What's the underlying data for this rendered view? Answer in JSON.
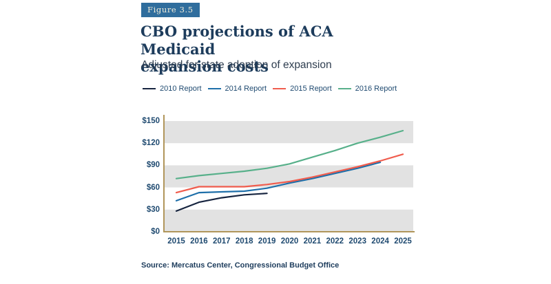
{
  "figure_label": "Figure 3.5",
  "source": "Source: Mercatus Center, Congressional Budget Office",
  "colors": {
    "badge_background": "#2f6d9d",
    "badge_text": "#f2edda",
    "title_navy": "#1d3c5c",
    "subtitle_gray_navy": "#2e3d4f",
    "tick_navy": "#1f4a70",
    "source_navy": "#1d3c5c",
    "axis_gold": "#b0955a",
    "band_gray": "#e2e2e2"
  },
  "chart_data": {
    "type": "line",
    "title": "CBO projections of ACA Medicaid\nexpansion costs",
    "subtitle": "Adjusted for state adoption of expansion",
    "x": [
      2015,
      2016,
      2017,
      2018,
      2019,
      2020,
      2021,
      2022,
      2023,
      2024,
      2025
    ],
    "y_ticks": [
      0,
      30,
      60,
      90,
      120,
      150
    ],
    "y_tick_prefix": "$",
    "ylim": [
      0,
      150
    ],
    "grid": "alternating horizontal gray bands every $30",
    "legend_position": "top",
    "series": [
      {
        "name": "2010 Report",
        "color": "#16243f",
        "values": [
          28,
          40,
          46,
          50,
          52
        ]
      },
      {
        "name": "2014 Report",
        "color": "#1e6fa9",
        "values": [
          42,
          53,
          54,
          55,
          59,
          66,
          72,
          79,
          86,
          94
        ]
      },
      {
        "name": "2015 Report",
        "color": "#f05c4d",
        "values": [
          53,
          61,
          61,
          61,
          64,
          68,
          74,
          81,
          88,
          96,
          105
        ]
      },
      {
        "name": "2016 Report",
        "color": "#57b08a",
        "values": [
          72,
          76,
          79,
          82,
          86,
          92,
          101,
          110,
          120,
          128,
          137
        ]
      }
    ]
  }
}
